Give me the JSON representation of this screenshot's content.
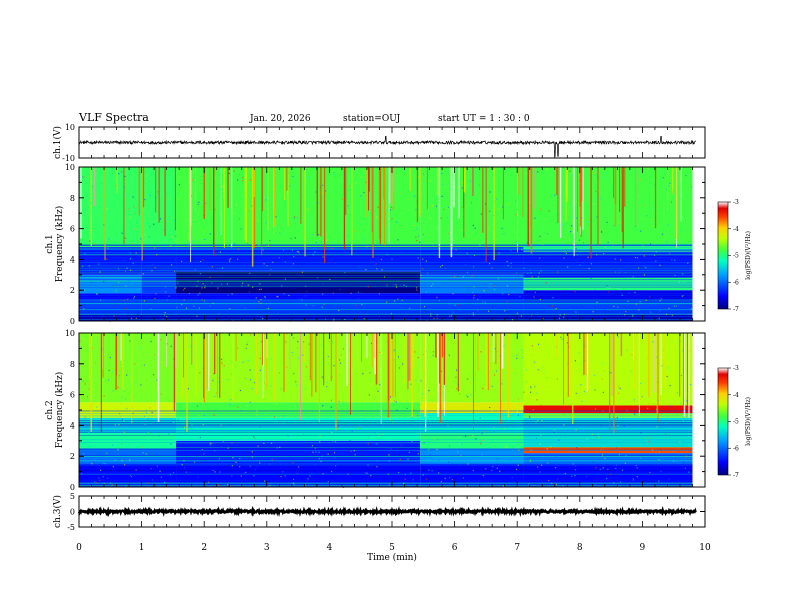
{
  "header": {
    "title": "VLF Spectra",
    "date": "Jan. 20, 2026",
    "station": "station=OUJ",
    "start": "start UT =  1 : 30 : 0"
  },
  "chart_data": [
    {
      "type": "line",
      "panel": "ch1-waveform",
      "ylabel": "ch.1(V)",
      "ylim": [
        -10,
        10
      ],
      "yticks": [
        "10",
        "-10"
      ],
      "xlim": [
        0,
        10
      ],
      "baseline_value": 0,
      "noise_amplitude": 1.0,
      "spikes": [
        {
          "x": 4.9,
          "v": 4
        },
        {
          "x": 7.6,
          "v": -9
        },
        {
          "x": 7.65,
          "v": -9
        },
        {
          "x": 9.3,
          "v": 4
        }
      ],
      "line_color": "#000000"
    },
    {
      "type": "heatmap",
      "panel": "ch1-spectrogram",
      "ylabel": "ch.1",
      "ylabel2": "Frequency (kHz)",
      "ylim": [
        0,
        10
      ],
      "yticks": [
        "0",
        "2",
        "4",
        "6",
        "8",
        "10"
      ],
      "xlim": [
        0,
        9.8
      ],
      "colorbar": {
        "label": "log(PSD)(V²/Hz)",
        "range": [
          -7,
          -3
        ],
        "ticks": [
          "-3",
          "-4",
          "-5",
          "-6",
          "-7"
        ]
      },
      "segments": [
        {
          "x": [
            0,
            1.0
          ],
          "bands": [
            [
              0,
              0.4,
              -6.8
            ],
            [
              0.4,
              1.2,
              -6.2
            ],
            [
              1.2,
              1.8,
              -6.5
            ],
            [
              1.8,
              3.0,
              -5.8
            ],
            [
              3.0,
              4.8,
              -6.4
            ],
            [
              4.8,
              10,
              -4.9
            ]
          ]
        },
        {
          "x": [
            1.0,
            1.55
          ],
          "bands": [
            [
              0,
              0.4,
              -6.8
            ],
            [
              0.4,
              1.2,
              -6.2
            ],
            [
              1.2,
              1.8,
              -6.5
            ],
            [
              1.8,
              3.0,
              -6.2
            ],
            [
              3.0,
              4.8,
              -6.4
            ],
            [
              4.8,
              10,
              -4.9
            ]
          ]
        },
        {
          "x": [
            1.55,
            5.45
          ],
          "bands": [
            [
              0,
              0.4,
              -6.8
            ],
            [
              0.4,
              1.2,
              -6.2
            ],
            [
              1.2,
              1.8,
              -6.5
            ],
            [
              1.8,
              3.2,
              -7.0
            ],
            [
              3.2,
              4.8,
              -6.4
            ],
            [
              4.8,
              10,
              -4.8
            ]
          ]
        },
        {
          "x": [
            5.45,
            7.1
          ],
          "bands": [
            [
              0,
              0.4,
              -6.8
            ],
            [
              0.4,
              1.2,
              -6.2
            ],
            [
              1.2,
              1.8,
              -6.5
            ],
            [
              1.8,
              3.0,
              -5.9
            ],
            [
              3.0,
              4.8,
              -6.4
            ],
            [
              4.8,
              10,
              -4.8
            ]
          ]
        },
        {
          "x": [
            7.1,
            9.8
          ],
          "bands": [
            [
              0,
              0.4,
              -6.8
            ],
            [
              0.4,
              1.2,
              -6.2
            ],
            [
              1.2,
              2.0,
              -6.6
            ],
            [
              2.0,
              2.8,
              -5.0
            ],
            [
              2.8,
              4.5,
              -6.4
            ],
            [
              4.5,
              5.0,
              -5.0
            ],
            [
              5.0,
              10,
              -4.8
            ]
          ]
        }
      ]
    },
    {
      "type": "heatmap",
      "panel": "ch2-spectrogram",
      "ylabel": "ch.2",
      "ylabel2": "Frequency (kHz)",
      "ylim": [
        0,
        10
      ],
      "yticks": [
        "0",
        "2",
        "4",
        "6",
        "8",
        "10"
      ],
      "xlim": [
        0,
        9.8
      ],
      "colorbar": {
        "label": "log(PSD)(V²/Hz)",
        "range": [
          -7,
          -3
        ],
        "ticks": [
          "-3",
          "-4",
          "-5",
          "-6",
          "-7"
        ]
      },
      "segments": [
        {
          "x": [
            0,
            1.55
          ],
          "bands": [
            [
              0,
              1.5,
              -6.5
            ],
            [
              1.5,
              2.5,
              -6.0
            ],
            [
              2.5,
              3.5,
              -5.1
            ],
            [
              3.5,
              4.5,
              -5.4
            ],
            [
              4.5,
              5.5,
              -4.3
            ],
            [
              5.5,
              10,
              -4.6
            ]
          ]
        },
        {
          "x": [
            1.55,
            5.45
          ],
          "bands": [
            [
              0,
              1.5,
              -6.5
            ],
            [
              1.5,
              3.0,
              -6.4
            ],
            [
              3.0,
              4.5,
              -5.2
            ],
            [
              4.5,
              5.5,
              -4.8
            ],
            [
              5.5,
              10,
              -4.5
            ]
          ]
        },
        {
          "x": [
            5.45,
            7.1
          ],
          "bands": [
            [
              0,
              1.5,
              -6.5
            ],
            [
              1.5,
              2.5,
              -5.8
            ],
            [
              2.5,
              3.5,
              -5.0
            ],
            [
              3.5,
              4.8,
              -5.2
            ],
            [
              4.8,
              5.5,
              -4.2
            ],
            [
              5.5,
              10,
              -4.5
            ]
          ]
        },
        {
          "x": [
            7.1,
            9.8
          ],
          "bands": [
            [
              0,
              1.5,
              -6.5
            ],
            [
              1.5,
              2.2,
              -6.0
            ],
            [
              2.2,
              2.6,
              -3.6
            ],
            [
              2.6,
              4.5,
              -5.4
            ],
            [
              4.5,
              4.8,
              -4.6
            ],
            [
              4.8,
              5.3,
              -3.3
            ],
            [
              5.3,
              10,
              -4.4
            ]
          ]
        }
      ]
    },
    {
      "type": "line",
      "panel": "ch3-waveform",
      "ylabel": "ch.3(V)",
      "ylim": [
        -5,
        5
      ],
      "yticks": [
        "5",
        "0",
        "-5"
      ],
      "xlim": [
        0,
        10
      ],
      "xlabel": "Time (min)",
      "xticks": [
        "0",
        "1",
        "2",
        "3",
        "4",
        "5",
        "6",
        "7",
        "8",
        "9",
        "10"
      ],
      "baseline_value": 0,
      "noise_amplitude": 0.35,
      "line_color": "#000000"
    }
  ]
}
